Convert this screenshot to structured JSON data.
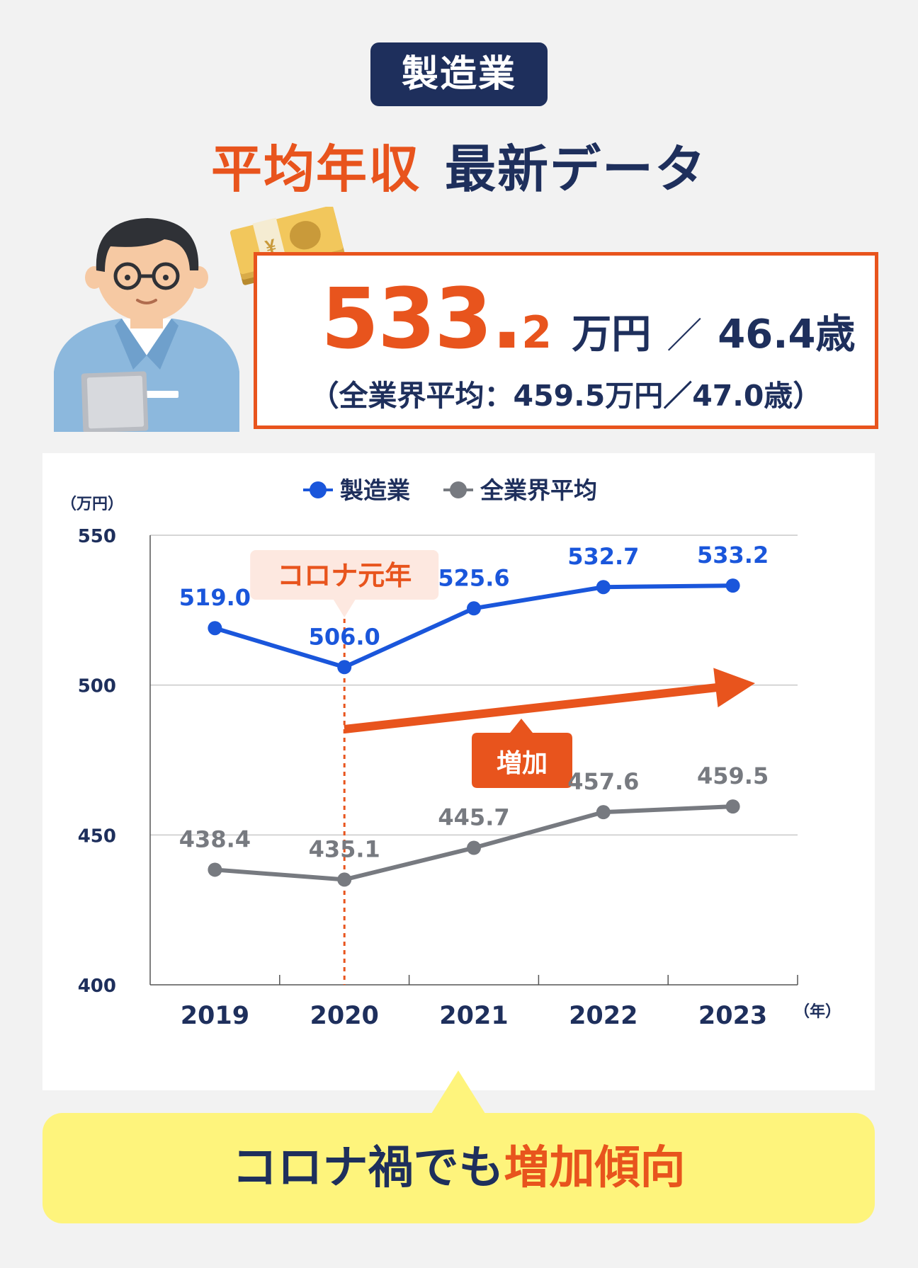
{
  "header": {
    "badge": "製造業",
    "title_highlight": "平均年収",
    "title_rest": "最新データ"
  },
  "stat": {
    "salary_int": "533.",
    "salary_dec": "2",
    "salary_unit": "万円",
    "separator": "／",
    "age": "46.4歳",
    "comparison": "（全業界平均：459.5万円／47.0歳）"
  },
  "chart_data": {
    "type": "line",
    "title": "",
    "xlabel": "（年）",
    "ylabel": "（万円）",
    "ylim": [
      400,
      550
    ],
    "yticks": [
      400,
      450,
      500,
      550
    ],
    "x": [
      "2019",
      "2020",
      "2021",
      "2022",
      "2023"
    ],
    "series": [
      {
        "name": "製造業",
        "color": "#1a56db",
        "values": [
          519.0,
          506.0,
          525.6,
          532.7,
          533.2
        ],
        "labels": [
          "519.0",
          "506.0",
          "525.6",
          "532.7",
          "533.2"
        ]
      },
      {
        "name": "全業界平均",
        "color": "#777a80",
        "values": [
          438.4,
          435.1,
          445.7,
          457.6,
          459.5
        ],
        "labels": [
          "438.4",
          "435.1",
          "445.7",
          "457.6",
          "459.5"
        ]
      }
    ],
    "grid": true,
    "legend": "top-center",
    "annotations": {
      "event_label": "コロナ元年",
      "event_x": "2020",
      "trend_label": "増加"
    }
  },
  "footer": {
    "text_prefix": "コロナ禍でも",
    "text_highlight": "増加傾向"
  },
  "colors": {
    "navy": "#1e2f5c",
    "orange": "#e8541d",
    "blue": "#1a56db",
    "gray": "#777a80",
    "yellow": "#fef47c"
  }
}
